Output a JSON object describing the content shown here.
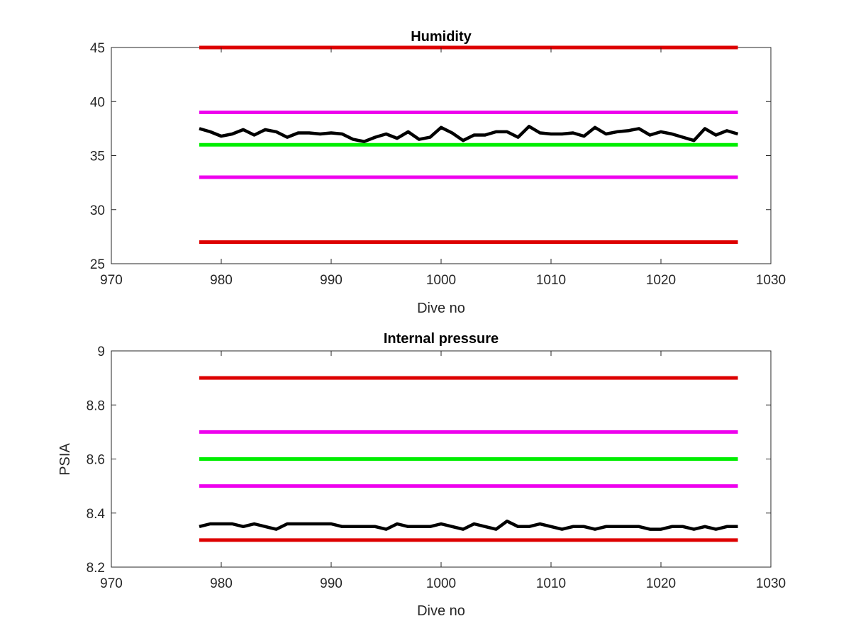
{
  "chart_data": [
    {
      "type": "line",
      "title": "Humidity",
      "xlabel": "Dive no",
      "ylabel": "",
      "xlim": [
        970,
        1030
      ],
      "ylim": [
        25,
        45
      ],
      "xticks": [
        970,
        980,
        990,
        1000,
        1010,
        1020,
        1030
      ],
      "yticks": [
        25,
        30,
        35,
        40,
        45
      ],
      "grid": false,
      "limit_lines": [
        {
          "y": 45,
          "x": [
            978,
            1027
          ],
          "color": "#dd0000"
        },
        {
          "y": 39,
          "x": [
            978,
            1027
          ],
          "color": "#ee00ee"
        },
        {
          "y": 36,
          "x": [
            978,
            1027
          ],
          "color": "#00ee00"
        },
        {
          "y": 33,
          "x": [
            978,
            1027
          ],
          "color": "#ee00ee"
        },
        {
          "y": 27,
          "x": [
            978,
            1027
          ],
          "color": "#dd0000"
        }
      ],
      "series": [
        {
          "color": "#000000",
          "x": [
            978,
            979,
            980,
            981,
            982,
            983,
            984,
            985,
            986,
            987,
            988,
            989,
            990,
            991,
            992,
            993,
            994,
            995,
            996,
            997,
            998,
            999,
            1000,
            1001,
            1002,
            1003,
            1004,
            1005,
            1006,
            1007,
            1008,
            1009,
            1010,
            1011,
            1012,
            1013,
            1014,
            1015,
            1016,
            1017,
            1018,
            1019,
            1020,
            1021,
            1022,
            1023,
            1024,
            1025,
            1026,
            1027
          ],
          "values": [
            37.5,
            37.2,
            36.8,
            37.0,
            37.4,
            36.9,
            37.4,
            37.2,
            36.7,
            37.1,
            37.1,
            37.0,
            37.1,
            37.0,
            36.5,
            36.3,
            36.7,
            37.0,
            36.6,
            37.2,
            36.5,
            36.7,
            37.6,
            37.1,
            36.4,
            36.9,
            36.9,
            37.2,
            37.2,
            36.7,
            37.7,
            37.1,
            37.0,
            37.0,
            37.1,
            36.8,
            37.6,
            37.0,
            37.2,
            37.3,
            37.5,
            36.9,
            37.2,
            37.0,
            36.7,
            36.4,
            37.5,
            36.9,
            37.3,
            37.0
          ]
        }
      ]
    },
    {
      "type": "line",
      "title": "Internal pressure",
      "xlabel": "Dive no",
      "ylabel": "PSIA",
      "xlim": [
        970,
        1030
      ],
      "ylim": [
        8.2,
        9.0
      ],
      "xticks": [
        970,
        980,
        990,
        1000,
        1010,
        1020,
        1030
      ],
      "yticks": [
        8.2,
        8.4,
        8.6,
        8.8,
        9.0
      ],
      "ytick_labels": [
        "8.2",
        "8.4",
        "8.6",
        "8.8",
        "9"
      ],
      "grid": false,
      "limit_lines": [
        {
          "y": 8.9,
          "x": [
            978,
            1027
          ],
          "color": "#dd0000"
        },
        {
          "y": 8.7,
          "x": [
            978,
            1027
          ],
          "color": "#ee00ee"
        },
        {
          "y": 8.6,
          "x": [
            978,
            1027
          ],
          "color": "#00ee00"
        },
        {
          "y": 8.5,
          "x": [
            978,
            1027
          ],
          "color": "#ee00ee"
        },
        {
          "y": 8.3,
          "x": [
            978,
            1027
          ],
          "color": "#dd0000"
        }
      ],
      "series": [
        {
          "color": "#000000",
          "x": [
            978,
            979,
            980,
            981,
            982,
            983,
            984,
            985,
            986,
            987,
            988,
            989,
            990,
            991,
            992,
            993,
            994,
            995,
            996,
            997,
            998,
            999,
            1000,
            1001,
            1002,
            1003,
            1004,
            1005,
            1006,
            1007,
            1008,
            1009,
            1010,
            1011,
            1012,
            1013,
            1014,
            1015,
            1016,
            1017,
            1018,
            1019,
            1020,
            1021,
            1022,
            1023,
            1024,
            1025,
            1026,
            1027
          ],
          "values": [
            8.35,
            8.36,
            8.36,
            8.36,
            8.35,
            8.36,
            8.35,
            8.34,
            8.36,
            8.36,
            8.36,
            8.36,
            8.36,
            8.35,
            8.35,
            8.35,
            8.35,
            8.34,
            8.36,
            8.35,
            8.35,
            8.35,
            8.36,
            8.35,
            8.34,
            8.36,
            8.35,
            8.34,
            8.37,
            8.35,
            8.35,
            8.36,
            8.35,
            8.34,
            8.35,
            8.35,
            8.34,
            8.35,
            8.35,
            8.35,
            8.35,
            8.34,
            8.34,
            8.35,
            8.35,
            8.34,
            8.35,
            8.34,
            8.35,
            8.35
          ]
        }
      ]
    }
  ]
}
